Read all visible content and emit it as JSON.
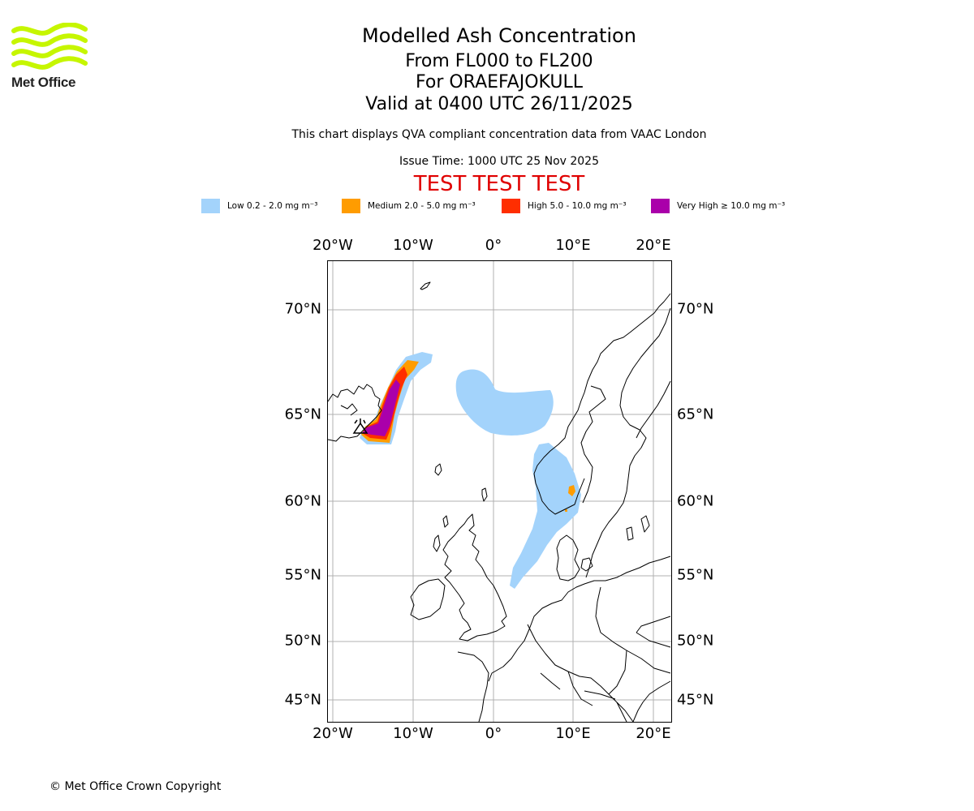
{
  "logo": {
    "text": "Met Office",
    "color": "#c6f600"
  },
  "header": {
    "title": "Modelled Ash Concentration",
    "levels": "From FL000 to FL200",
    "volcano": "For ORAEFAJOKULL",
    "valid": "Valid at 0400 UTC 26/11/2025",
    "description": "This chart displays QVA compliant concentration data from VAAC London",
    "issue_time": "Issue Time: 1000 UTC 25 Nov 2025",
    "test_banner": "TEST TEST TEST"
  },
  "legend": [
    {
      "label": "Low 0.2 - 2.0 mg m⁻³",
      "color": "#a3d3fb"
    },
    {
      "label": "Medium 2.0 - 5.0 mg m⁻³",
      "color": "#ff9c00"
    },
    {
      "label": "High 5.0 - 10.0 mg m⁻³",
      "color": "#ff2e00"
    },
    {
      "label": "Very High ≥ 10.0 mg m⁻³",
      "color": "#aa00aa"
    }
  ],
  "map": {
    "lon_ticks": [
      "20°W",
      "10°W",
      "0°",
      "10°E",
      "20°E"
    ],
    "lat_ticks": [
      "70°N",
      "65°N",
      "60°N",
      "55°N",
      "50°N",
      "45°N"
    ],
    "volcano_marker": {
      "name": "ORAEFAJOKULL",
      "lat": 64.0,
      "lon": -16.65
    }
  },
  "footer": {
    "copyright": "© Met Office Crown Copyright"
  }
}
